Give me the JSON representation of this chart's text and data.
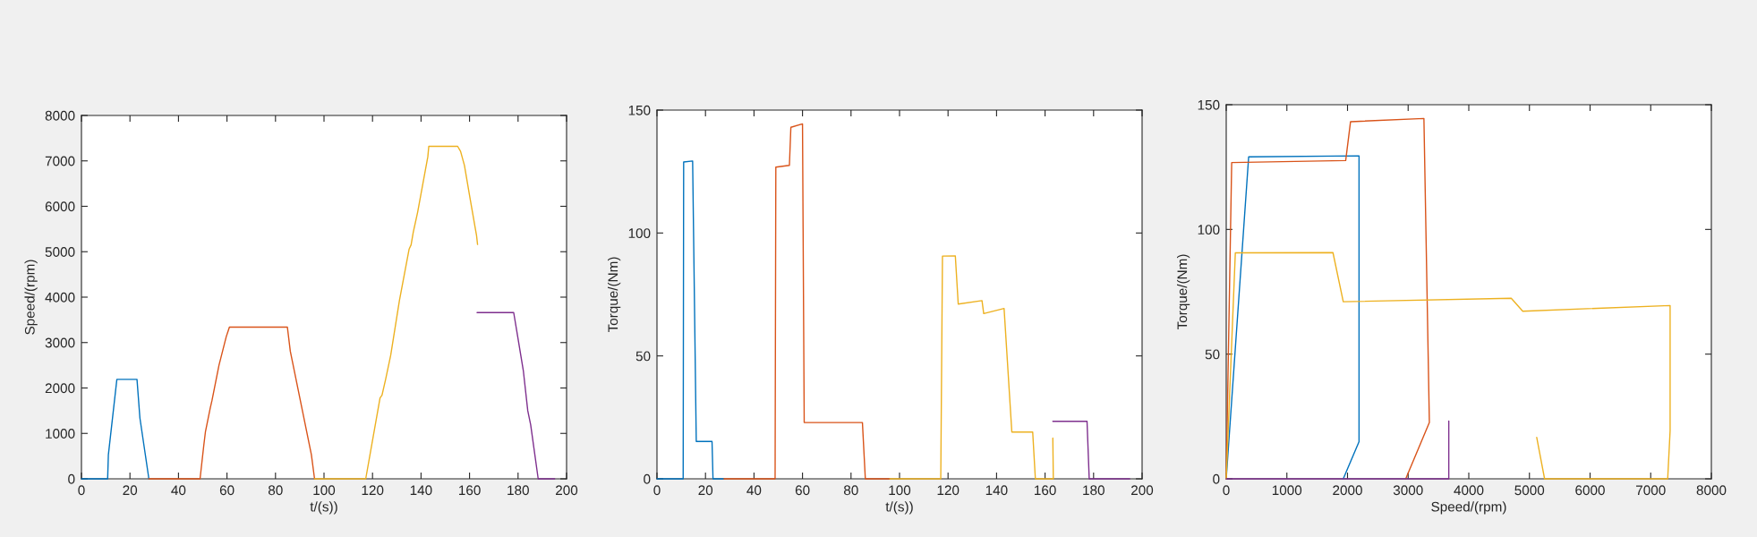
{
  "chart_data": [
    {
      "type": "line",
      "xlabel": "t/(s))",
      "ylabel": "Speed/(rpm)",
      "xlim": [
        0,
        200
      ],
      "ylim": [
        0,
        8000
      ],
      "xticks": [
        0,
        20,
        40,
        60,
        80,
        100,
        120,
        140,
        160,
        180,
        200
      ],
      "yticks": [
        0,
        1000,
        2000,
        3000,
        4000,
        5000,
        6000,
        7000,
        8000
      ],
      "series": [
        {
          "color": "#0072bd",
          "x": [
            0,
            10.8,
            11.1,
            14.6,
            22.9,
            24.1,
            27.8
          ],
          "values": [
            0,
            0,
            530,
            2190,
            2190,
            1340,
            0
          ]
        },
        {
          "color": "#d95319",
          "x": [
            27.8,
            48.9,
            50.4,
            51.1,
            53.1,
            53.8,
            56.7,
            59.7,
            61.0,
            84.9,
            86.1,
            94.8,
            96.1
          ],
          "values": [
            0,
            0,
            720,
            1030,
            1560,
            1720,
            2500,
            3130,
            3340,
            3340,
            2810,
            530,
            0
          ]
        },
        {
          "color": "#edb120",
          "x": [
            96.1,
            117.2,
            123.1,
            123.9,
            125.4,
            127.5,
            131.1,
            135.1,
            135.9,
            136.8,
            138.6,
            142.8,
            143.2,
            155.1,
            156.3,
            157.9,
            160.0,
            162.9,
            163.3
          ],
          "values": [
            0,
            0,
            1780,
            1840,
            2190,
            2720,
            3930,
            5060,
            5150,
            5430,
            5870,
            7090,
            7320,
            7320,
            7210,
            6900,
            6240,
            5350,
            5160
          ]
        },
        {
          "color": "#7e2f8e",
          "x": [
            163.1,
            178.2,
            179.7,
            182.2,
            184.0,
            185.2,
            188.3,
            195.1
          ],
          "values": [
            3660,
            3660,
            3180,
            2370,
            1500,
            1190,
            0,
            0
          ]
        }
      ]
    },
    {
      "type": "line",
      "xlabel": "t/(s))",
      "ylabel": "Torque/(Nm)",
      "xlim": [
        0,
        200
      ],
      "ylim": [
        0,
        150
      ],
      "xticks": [
        0,
        20,
        40,
        60,
        80,
        100,
        120,
        140,
        160,
        180,
        200
      ],
      "yticks": [
        0,
        50,
        100,
        150
      ],
      "series": [
        {
          "color": "#0072bd",
          "x": [
            0,
            10.8,
            11.0,
            14.7,
            16.2,
            22.7,
            23.1,
            27.6
          ],
          "values": [
            0,
            0,
            128.9,
            129.3,
            15.2,
            15.2,
            0,
            0
          ]
        },
        {
          "color": "#d95319",
          "x": [
            27.6,
            48.7,
            49.0,
            54.6,
            55.2,
            60.0,
            60.7,
            84.7,
            85.9,
            96.0
          ],
          "values": [
            0,
            0,
            126.8,
            127.5,
            143.0,
            144.4,
            22.9,
            22.9,
            0,
            0
          ]
        },
        {
          "color": "#edb120",
          "x": [
            96.0,
            117.0,
            117.7,
            123.0,
            124.2,
            134.0,
            134.7,
            143.1,
            146.3,
            154.9,
            156.0,
            163.4,
            163.2
          ],
          "values": [
            0,
            0,
            90.6,
            90.7,
            71.1,
            72.5,
            67.2,
            69.3,
            19.0,
            19.0,
            0,
            0,
            16.6
          ]
        },
        {
          "color": "#7e2f8e",
          "x": [
            163.2,
            177.3,
            178.2,
            194.9
          ],
          "values": [
            23.4,
            23.4,
            0,
            0
          ]
        }
      ]
    },
    {
      "type": "line",
      "xlabel": "Speed/(rpm)",
      "ylabel": "Torque/(Nm)",
      "xlim": [
        0,
        8000
      ],
      "ylim": [
        0,
        150
      ],
      "xticks": [
        0,
        1000,
        2000,
        3000,
        4000,
        5000,
        6000,
        7000,
        8000
      ],
      "yticks": [
        0,
        50,
        100,
        150
      ],
      "series": [
        {
          "color": "#0072bd",
          "x": [
            0,
            370,
            2190,
            2190,
            1930
          ],
          "values": [
            0,
            129.1,
            129.5,
            14.9,
            0
          ]
        },
        {
          "color": "#d95319",
          "x": [
            0,
            90,
            1970,
            2050,
            3260,
            3350,
            2960
          ],
          "values": [
            0,
            126.8,
            127.6,
            143.2,
            144.5,
            22.6,
            0
          ]
        },
        {
          "color": "#edb120",
          "x": [
            0,
            150,
            1760,
            1930,
            4700,
            4890,
            7320,
            7320,
            7280,
            5250,
            5120
          ],
          "values": [
            0,
            90.6,
            90.7,
            71.0,
            72.4,
            67.2,
            69.5,
            19.3,
            0,
            0,
            16.6
          ]
        },
        {
          "color": "#7e2f8e",
          "x": [
            3670,
            3670,
            0
          ],
          "values": [
            23.2,
            0,
            0
          ]
        }
      ]
    }
  ]
}
